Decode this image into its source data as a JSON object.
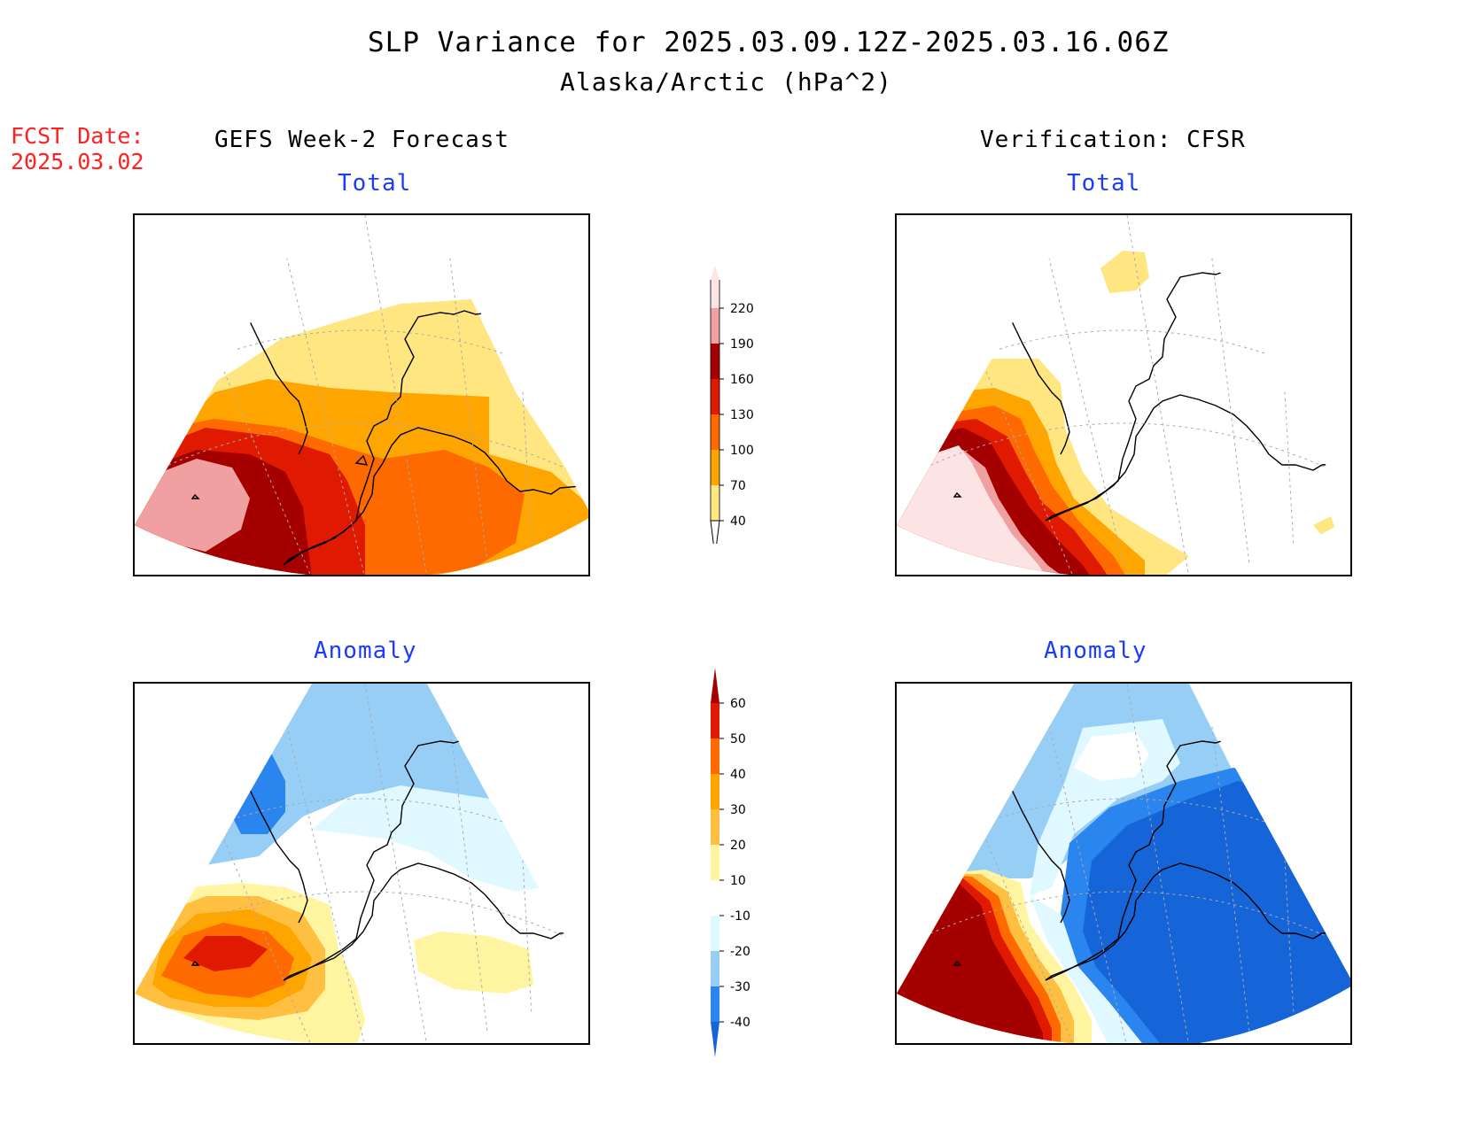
{
  "header": {
    "title": "SLP Variance for 2025.03.09.12Z-2025.03.16.06Z",
    "subtitle": "Alaska/Arctic (hPa^2)"
  },
  "fcst_date": {
    "label": "FCST Date:",
    "value": "2025.03.02"
  },
  "columns": {
    "left": "GEFS Week-2 Forecast",
    "right": "Verification: CFSR"
  },
  "panels": {
    "gefs_total": {
      "title": "Total"
    },
    "cfsr_total": {
      "title": "Total"
    },
    "gefs_anomaly": {
      "title": "Anomaly"
    },
    "cfsr_anomaly": {
      "title": "Anomaly"
    }
  },
  "colorbars": {
    "total": {
      "labels": [
        "40",
        "70",
        "100",
        "130",
        "160",
        "190",
        "220"
      ],
      "colors": [
        "#ffe680",
        "#ffa500",
        "#ff6a00",
        "#e01a00",
        "#a50000",
        "#f0a0a0",
        "#fde4e4"
      ]
    },
    "anomaly": {
      "labels": [
        "-40",
        "-30",
        "-20",
        "-10",
        "10",
        "20",
        "30",
        "40",
        "50",
        "60"
      ],
      "colors": [
        "#1565d8",
        "#2b85ee",
        "#96cef6",
        "#e0f8ff",
        "#ffffff",
        "#fff5a0",
        "#ffbf40",
        "#ffa500",
        "#ff6a00",
        "#e01a00",
        "#a50000"
      ]
    }
  },
  "palette": {
    "pink_light": "#fde4e4",
    "pink": "#f0a0a0",
    "darkred": "#a50000",
    "red": "#e01a00",
    "orange": "#ff6a00",
    "amber": "#ffa500",
    "lightorange": "#ffbf40",
    "yellow": "#ffe680",
    "paleyellow": "#fff5a0",
    "paleblue": "#e0f8ff",
    "lightblue": "#96cef6",
    "midblue": "#2b85ee",
    "deepblue": "#1565d8",
    "title_blue": "#1a3cff",
    "fcst_red": "#ff2020"
  }
}
